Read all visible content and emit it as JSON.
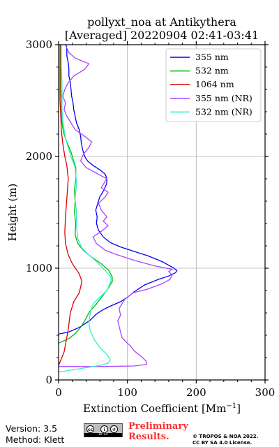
{
  "chart_data": {
    "type": "line",
    "title": "pollyxt_noa at Antikythera",
    "subtitle": "[Averaged] 20220904 02:41-03:41",
    "xlabel": "Extinction Coefficient [Mm",
    "xlabel_exponent": "−1",
    "xlabel_suffix": "]",
    "ylabel": "Height (m)",
    "xlim": [
      0,
      300
    ],
    "ylim": [
      0,
      3000
    ],
    "x_ticks": [
      0,
      100,
      200,
      300
    ],
    "y_ticks": [
      0,
      1000,
      2000,
      3000
    ],
    "grid": true,
    "legend_position": "upper-right",
    "series": [
      {
        "name": "355 nm",
        "color": "#0000ff",
        "points": [
          [
            0,
            410
          ],
          [
            15,
            430
          ],
          [
            30,
            470
          ],
          [
            45,
            530
          ],
          [
            55,
            590
          ],
          [
            65,
            630
          ],
          [
            75,
            660
          ],
          [
            90,
            700
          ],
          [
            100,
            740
          ],
          [
            110,
            790
          ],
          [
            125,
            850
          ],
          [
            145,
            900
          ],
          [
            160,
            930
          ],
          [
            170,
            960
          ],
          [
            172,
            980
          ],
          [
            165,
            1010
          ],
          [
            150,
            1060
          ],
          [
            130,
            1110
          ],
          [
            110,
            1150
          ],
          [
            90,
            1190
          ],
          [
            75,
            1230
          ],
          [
            65,
            1280
          ],
          [
            58,
            1340
          ],
          [
            55,
            1400
          ],
          [
            56,
            1460
          ],
          [
            54,
            1520
          ],
          [
            57,
            1580
          ],
          [
            60,
            1640
          ],
          [
            66,
            1700
          ],
          [
            70,
            1760
          ],
          [
            70,
            1800
          ],
          [
            68,
            1840
          ],
          [
            60,
            1880
          ],
          [
            50,
            1920
          ],
          [
            42,
            1960
          ],
          [
            38,
            2000
          ],
          [
            35,
            2060
          ],
          [
            33,
            2120
          ],
          [
            32,
            2180
          ],
          [
            30,
            2240
          ],
          [
            26,
            2300
          ],
          [
            24,
            2360
          ],
          [
            22,
            2420
          ],
          [
            21,
            2480
          ],
          [
            19,
            2540
          ],
          [
            18,
            2600
          ],
          [
            17,
            2660
          ],
          [
            15,
            2720
          ],
          [
            15,
            2780
          ],
          [
            14,
            2840
          ],
          [
            12,
            2900
          ],
          [
            12,
            2960
          ],
          [
            11,
            3000
          ]
        ]
      },
      {
        "name": "532 nm",
        "color": "#00bb00",
        "points": [
          [
            0,
            330
          ],
          [
            15,
            370
          ],
          [
            25,
            420
          ],
          [
            32,
            470
          ],
          [
            38,
            530
          ],
          [
            45,
            610
          ],
          [
            55,
            680
          ],
          [
            65,
            760
          ],
          [
            72,
            820
          ],
          [
            78,
            880
          ],
          [
            78,
            920
          ],
          [
            73,
            980
          ],
          [
            62,
            1040
          ],
          [
            48,
            1100
          ],
          [
            36,
            1160
          ],
          [
            28,
            1220
          ],
          [
            24,
            1300
          ],
          [
            25,
            1400
          ],
          [
            23,
            1500
          ],
          [
            24,
            1600
          ],
          [
            23,
            1700
          ],
          [
            25,
            1800
          ],
          [
            25,
            1900
          ],
          [
            22,
            1960
          ],
          [
            18,
            2040
          ],
          [
            14,
            2100
          ],
          [
            10,
            2160
          ],
          [
            7,
            2220
          ],
          [
            5,
            2300
          ],
          [
            4,
            2400
          ],
          [
            4,
            2500
          ],
          [
            3,
            2600
          ],
          [
            3,
            2700
          ],
          [
            3,
            2800
          ],
          [
            3,
            2900
          ],
          [
            3,
            3000
          ]
        ]
      },
      {
        "name": "1064 nm",
        "color": "#dd0000",
        "points": [
          [
            0,
            130
          ],
          [
            8,
            250
          ],
          [
            14,
            450
          ],
          [
            17,
            600
          ],
          [
            22,
            700
          ],
          [
            30,
            780
          ],
          [
            34,
            880
          ],
          [
            30,
            950
          ],
          [
            20,
            1040
          ],
          [
            14,
            1120
          ],
          [
            10,
            1220
          ],
          [
            9,
            1320
          ],
          [
            10,
            1460
          ],
          [
            12,
            1620
          ],
          [
            14,
            1800
          ],
          [
            12,
            1920
          ],
          [
            9,
            2000
          ],
          [
            6,
            2120
          ],
          [
            4,
            2240
          ],
          [
            3,
            2380
          ],
          [
            2,
            2500
          ],
          [
            2,
            2700
          ],
          [
            2,
            2900
          ],
          [
            2,
            3000
          ]
        ]
      },
      {
        "name": "355 nm (NR)",
        "color": "#aa44ff",
        "points": [
          [
            0,
            120
          ],
          [
            60,
            120
          ],
          [
            110,
            125
          ],
          [
            128,
            140
          ],
          [
            127,
            170
          ],
          [
            120,
            210
          ],
          [
            110,
            260
          ],
          [
            105,
            300
          ],
          [
            98,
            340
          ],
          [
            92,
            380
          ],
          [
            90,
            430
          ],
          [
            88,
            480
          ],
          [
            86,
            530
          ],
          [
            90,
            580
          ],
          [
            88,
            640
          ],
          [
            96,
            720
          ],
          [
            108,
            780
          ],
          [
            128,
            810
          ],
          [
            150,
            860
          ],
          [
            162,
            900
          ],
          [
            165,
            940
          ],
          [
            160,
            970
          ],
          [
            165,
            990
          ],
          [
            140,
            1020
          ],
          [
            110,
            1070
          ],
          [
            85,
            1120
          ],
          [
            68,
            1160
          ],
          [
            55,
            1220
          ],
          [
            50,
            1280
          ],
          [
            62,
            1330
          ],
          [
            72,
            1380
          ],
          [
            65,
            1420
          ],
          [
            70,
            1460
          ],
          [
            62,
            1520
          ],
          [
            58,
            1580
          ],
          [
            68,
            1640
          ],
          [
            72,
            1680
          ],
          [
            62,
            1720
          ],
          [
            66,
            1760
          ],
          [
            70,
            1800
          ],
          [
            55,
            1850
          ],
          [
            40,
            1900
          ],
          [
            32,
            1960
          ],
          [
            36,
            2020
          ],
          [
            44,
            2080
          ],
          [
            48,
            2130
          ],
          [
            38,
            2180
          ],
          [
            24,
            2240
          ],
          [
            18,
            2300
          ],
          [
            12,
            2360
          ],
          [
            8,
            2420
          ],
          [
            10,
            2480
          ],
          [
            6,
            2540
          ],
          [
            9,
            2600
          ],
          [
            14,
            2660
          ],
          [
            22,
            2720
          ],
          [
            38,
            2780
          ],
          [
            44,
            2830
          ],
          [
            24,
            2880
          ],
          [
            15,
            2930
          ],
          [
            12,
            2970
          ],
          [
            10,
            3000
          ]
        ]
      },
      {
        "name": "532 nm (NR)",
        "color": "#33eecc",
        "points": [
          [
            0,
            70
          ],
          [
            20,
            90
          ],
          [
            40,
            110
          ],
          [
            60,
            130
          ],
          [
            72,
            150
          ],
          [
            75,
            180
          ],
          [
            70,
            230
          ],
          [
            60,
            290
          ],
          [
            52,
            360
          ],
          [
            46,
            440
          ],
          [
            44,
            520
          ],
          [
            46,
            600
          ],
          [
            50,
            680
          ],
          [
            60,
            740
          ],
          [
            70,
            800
          ],
          [
            76,
            880
          ],
          [
            76,
            920
          ],
          [
            66,
            990
          ],
          [
            55,
            1060
          ],
          [
            44,
            1120
          ],
          [
            34,
            1180
          ],
          [
            28,
            1260
          ],
          [
            26,
            1380
          ],
          [
            26,
            1500
          ],
          [
            24,
            1620
          ],
          [
            26,
            1760
          ],
          [
            24,
            1900
          ],
          [
            18,
            2000
          ],
          [
            14,
            2080
          ],
          [
            10,
            2160
          ],
          [
            8,
            2240
          ],
          [
            6,
            2320
          ],
          [
            5,
            2420
          ],
          [
            5,
            2540
          ],
          [
            5,
            2660
          ],
          [
            4,
            2800
          ],
          [
            4,
            2920
          ],
          [
            4,
            3000
          ]
        ]
      }
    ]
  },
  "footer": {
    "version": "Version: 3.5",
    "method": "Method: Klett",
    "cc_label": "BY SA",
    "preliminary_line1": "Preliminary",
    "preliminary_line2": "Results.",
    "copyright_line1": "© TROPOS & NOA 2022.",
    "copyright_line2": "CC BY SA 4.0 License."
  }
}
